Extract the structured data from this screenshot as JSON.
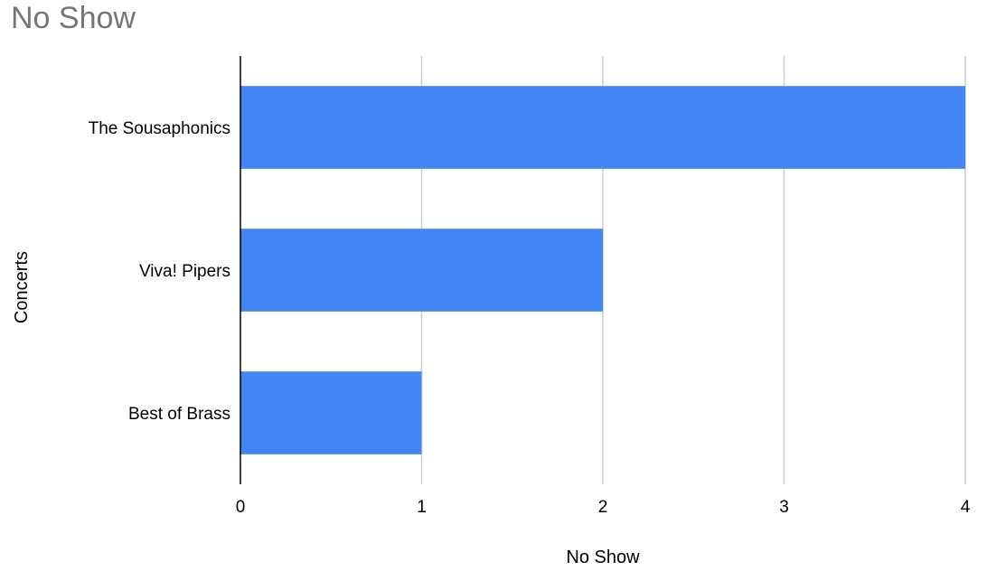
{
  "chart_data": {
    "type": "bar",
    "orientation": "horizontal",
    "title": "No Show",
    "xlabel": "No Show",
    "ylabel": "Concerts",
    "categories": [
      "The Sousaphonics",
      "Viva! Pipers",
      "Best of Brass"
    ],
    "values": [
      4,
      2,
      1
    ],
    "xlim": [
      0,
      4
    ],
    "xticks": [
      "0",
      "1",
      "2",
      "3",
      "4"
    ],
    "grid": "vertical",
    "legend": "none",
    "bar_color": "#4285f4",
    "grid_color": "#cccccc",
    "axis_color": "#000000",
    "title_color": "#757575"
  }
}
